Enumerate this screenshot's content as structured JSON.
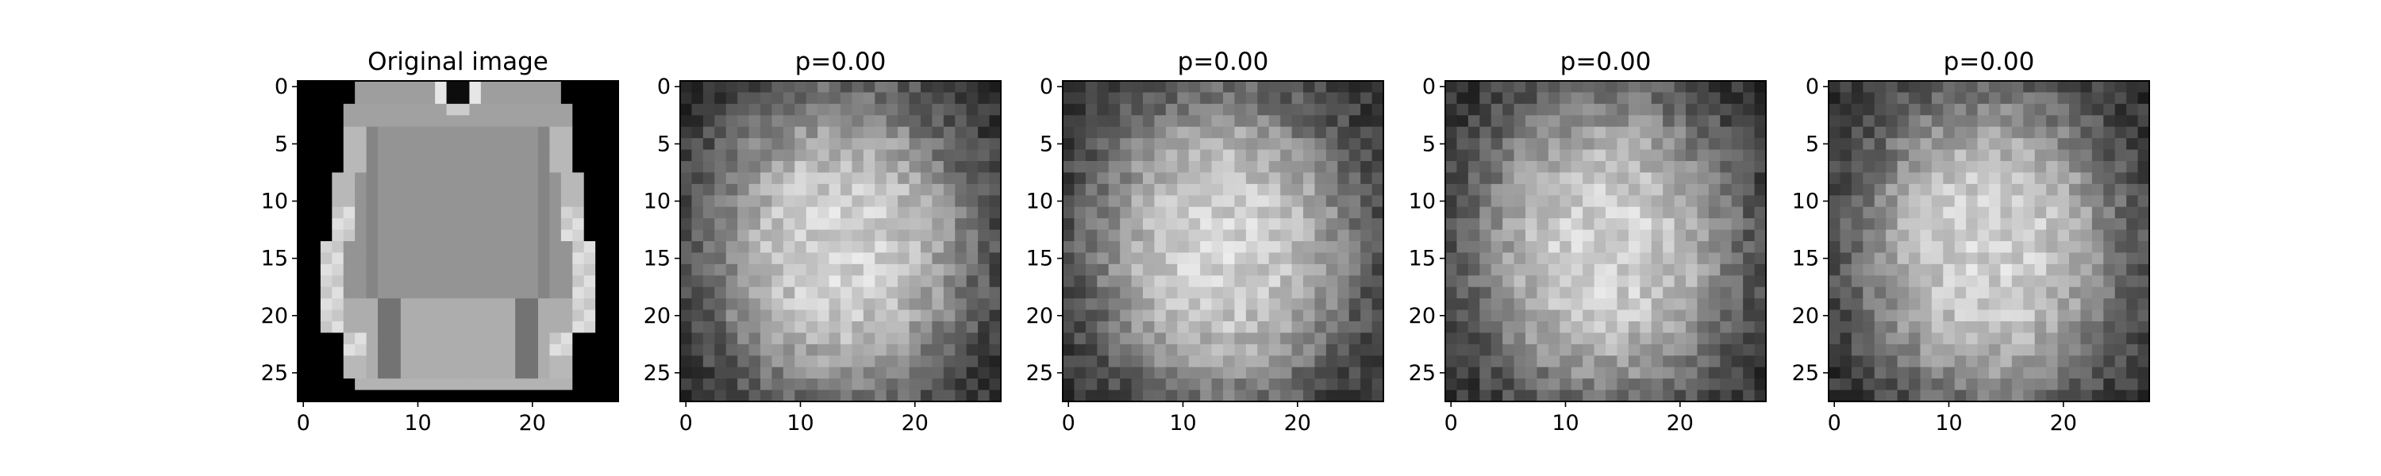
{
  "chart_data": [
    {
      "type": "heatmap",
      "title": "Original image",
      "content": "grayscale 28x28 image of a long-sleeve top",
      "colormap": "gray",
      "grid": false,
      "xlim": [
        0,
        27
      ],
      "ylim": [
        27,
        0
      ],
      "xticks": [
        "0",
        "10",
        "20"
      ],
      "yticks": [
        "0",
        "5",
        "10",
        "15",
        "20",
        "25"
      ]
    },
    {
      "type": "heatmap",
      "title": "p=0.00",
      "content": "grayscale 28x28 noisy blob image",
      "colormap": "gray",
      "grid": false,
      "xlim": [
        0,
        27
      ],
      "ylim": [
        27,
        0
      ],
      "xticks": [
        "0",
        "10",
        "20"
      ],
      "yticks": [
        "0",
        "5",
        "10",
        "15",
        "20",
        "25"
      ]
    },
    {
      "type": "heatmap",
      "title": "p=0.00",
      "content": "grayscale 28x28 noisy blob image",
      "colormap": "gray",
      "grid": false,
      "xlim": [
        0,
        27
      ],
      "ylim": [
        27,
        0
      ],
      "xticks": [
        "0",
        "10",
        "20"
      ],
      "yticks": [
        "0",
        "5",
        "10",
        "15",
        "20",
        "25"
      ]
    },
    {
      "type": "heatmap",
      "title": "p=0.00",
      "content": "grayscale 28x28 noisy blob image",
      "colormap": "gray",
      "grid": false,
      "xlim": [
        0,
        27
      ],
      "ylim": [
        27,
        0
      ],
      "xticks": [
        "0",
        "10",
        "20"
      ],
      "yticks": [
        "0",
        "5",
        "10",
        "15",
        "20",
        "25"
      ]
    },
    {
      "type": "heatmap",
      "title": "p=0.00",
      "content": "grayscale 28x28 noisy blob image",
      "colormap": "gray",
      "grid": false,
      "xlim": [
        0,
        27
      ],
      "ylim": [
        27,
        0
      ],
      "xticks": [
        "0",
        "10",
        "20"
      ],
      "yticks": [
        "0",
        "5",
        "10",
        "15",
        "20",
        "25"
      ]
    }
  ]
}
